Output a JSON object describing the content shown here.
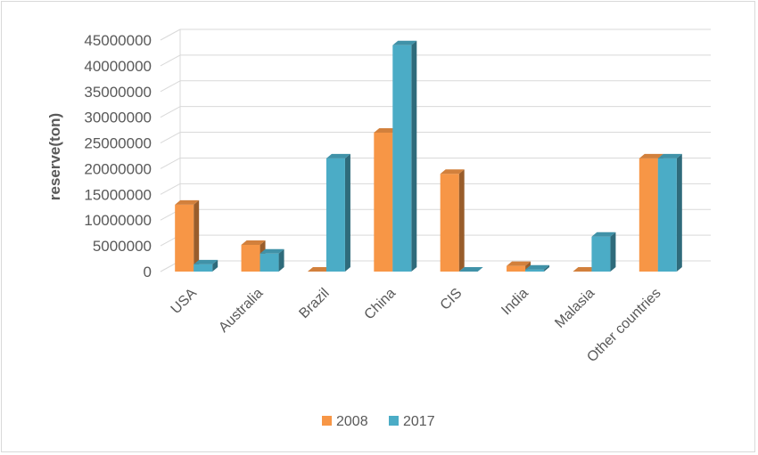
{
  "chart_data": {
    "type": "bar",
    "style": "3d-clustered-column",
    "ylabel": "reserve(ton)",
    "ylim": [
      0,
      45000000
    ],
    "ytick_step": 5000000,
    "ytick_labels": [
      "0",
      "5000000",
      "10000000",
      "15000000",
      "20000000",
      "25000000",
      "30000000",
      "35000000",
      "40000000",
      "45000000"
    ],
    "grid": true,
    "legend_position": "bottom",
    "categories": [
      "USA",
      "Australia",
      "Brazil",
      "China",
      "CIS",
      "India",
      "Malasia",
      "Other countries"
    ],
    "series": [
      {
        "name": "2008",
        "color": "#f79646",
        "values": [
          13000000,
          5200000,
          0,
          27000000,
          19000000,
          1100000,
          0,
          22000000
        ]
      },
      {
        "name": "2017",
        "color": "#4bacc6",
        "values": [
          1400000,
          3500000,
          22000000,
          44000000,
          0,
          400000,
          6800000,
          22000000
        ]
      }
    ]
  }
}
